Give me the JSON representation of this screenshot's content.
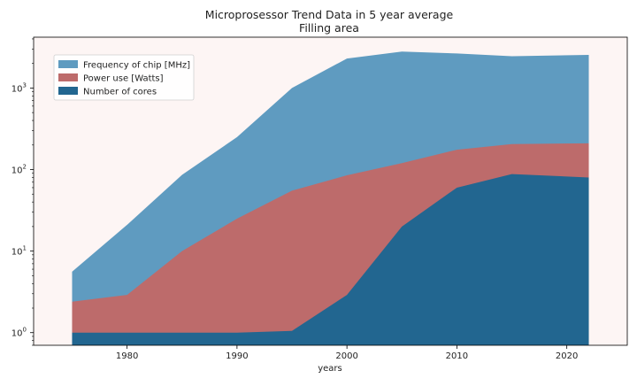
{
  "chart_data": {
    "type": "area",
    "title": "Microprosessor Trend Data in 5 year average",
    "subtitle": "Filling area",
    "xlabel": "years",
    "ylabel": "",
    "yscale": "log",
    "xlim": [
      1971.5,
      2025.5
    ],
    "ylim": [
      0.7,
      4200
    ],
    "x": [
      1975,
      1980,
      1985,
      1990,
      1995,
      2000,
      2005,
      2010,
      2015,
      2022
    ],
    "x_ticks": [
      1980,
      1990,
      2000,
      2010,
      2020
    ],
    "y_ticks": [
      {
        "value": 1,
        "base": "10",
        "exp": "0"
      },
      {
        "value": 10,
        "base": "10",
        "exp": "1"
      },
      {
        "value": 100,
        "base": "10",
        "exp": "2"
      },
      {
        "value": 1000,
        "base": "10",
        "exp": "3"
      }
    ],
    "series": [
      {
        "name": "Frequency of chip [MHz]",
        "color": "#5f9bc0",
        "values": [
          5.6,
          21,
          86,
          250,
          1000,
          2300,
          2800,
          2650,
          2450,
          2550
        ]
      },
      {
        "name": "Power use [Watts]",
        "color": "#bd6b6b",
        "values": [
          2.4,
          2.9,
          10,
          25,
          55,
          85,
          120,
          175,
          205,
          210
        ]
      },
      {
        "name": "Number of cores",
        "color": "#226690",
        "values": [
          1,
          1,
          1,
          1,
          1.05,
          2.9,
          20,
          60,
          88,
          80
        ]
      }
    ],
    "legend_position": "top-left",
    "grid": false,
    "plot_background": "#fdf5f4"
  }
}
